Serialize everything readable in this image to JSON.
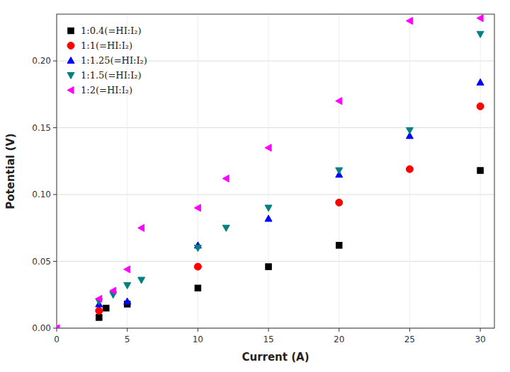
{
  "chart_data": {
    "type": "scatter",
    "x_label": "Current (A)",
    "y_label": "Potential (V)",
    "series": [
      {
        "name": "1:0.4(=HI:I₂)",
        "color": "black",
        "marker": "square",
        "x": [
          3,
          3.5,
          5,
          10,
          15,
          20,
          30
        ],
        "values": [
          0.008,
          0.015,
          0.018,
          0.03,
          0.046,
          0.062,
          0.118
        ]
      },
      {
        "name": "1:1(=HI:I₂)",
        "color": "red",
        "marker": "circle",
        "x": [
          3,
          10,
          20,
          25,
          30
        ],
        "values": [
          0.013,
          0.046,
          0.094,
          0.119,
          0.166
        ]
      },
      {
        "name": "1:1.25(=HI:I₂)",
        "color": "blue",
        "marker": "triangle-up",
        "x": [
          3,
          5,
          10,
          15,
          20,
          25,
          30
        ],
        "values": [
          0.018,
          0.02,
          0.062,
          0.082,
          0.115,
          0.144,
          0.184
        ]
      },
      {
        "name": "1:1.5(=HI:I₂)",
        "color": "#008080",
        "marker": "triangle-down",
        "x": [
          3,
          4,
          5,
          6,
          10,
          12,
          15,
          20,
          25,
          30
        ],
        "values": [
          0.02,
          0.025,
          0.032,
          0.036,
          0.06,
          0.075,
          0.09,
          0.118,
          0.148,
          0.22
        ]
      },
      {
        "name": "1:2(=HI:I₂)",
        "color": "magenta",
        "marker": "triangle-left",
        "x": [
          0,
          3,
          4,
          5,
          6,
          10,
          12,
          15,
          20,
          25,
          30
        ],
        "values": [
          0.0,
          0.022,
          0.028,
          0.044,
          0.075,
          0.09,
          0.112,
          0.135,
          0.17,
          0.23,
          0.232
        ]
      }
    ],
    "xlim": [
      0,
      31
    ],
    "ylim": [
      0.0,
      0.235
    ],
    "xticks": [
      0,
      5,
      10,
      15,
      20,
      25,
      30
    ],
    "yticks": [
      {
        "value": 0,
        "label": "0.00"
      },
      0.05,
      {
        "value": 0.1,
        "label": "0.10"
      },
      0.15,
      {
        "value": 0.2,
        "label": "0.20"
      }
    ],
    "grid": true,
    "legend": "upper left"
  }
}
